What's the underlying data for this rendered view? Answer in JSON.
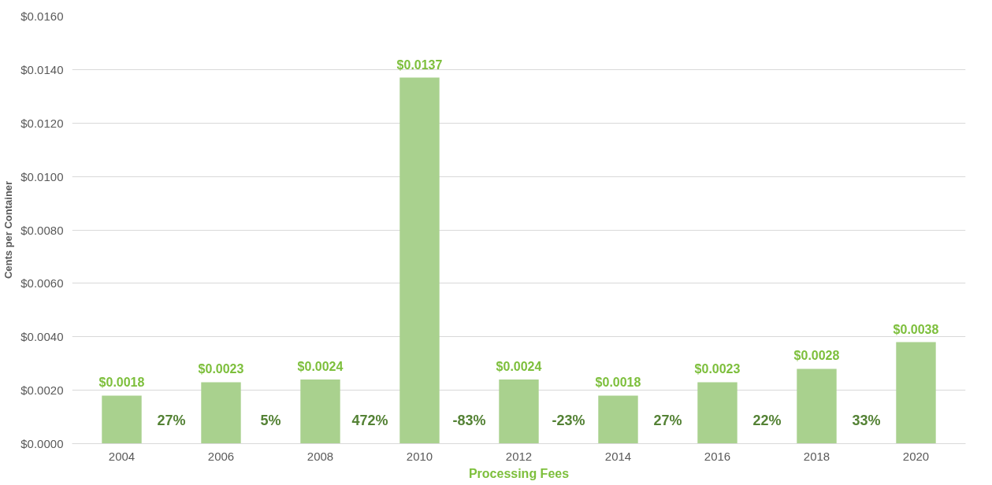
{
  "chart_data": {
    "type": "bar",
    "xlabel": "Processing Fees",
    "ylabel": "Cents per Container",
    "categories": [
      "2004",
      "2006",
      "2008",
      "2010",
      "2012",
      "2014",
      "2016",
      "2018",
      "2020"
    ],
    "values": [
      0.0018,
      0.0023,
      0.0024,
      0.0137,
      0.0024,
      0.0018,
      0.0023,
      0.0028,
      0.0038
    ],
    "color": "#a9d18e",
    "value_labels": [
      "$0.0018",
      "$0.0023",
      "$0.0024",
      "$0.0137",
      "$0.0024",
      "$0.0018",
      "$0.0023",
      "$0.0028",
      "$0.0038"
    ],
    "annotations": [
      "27%",
      "5%",
      "472%",
      "-83%",
      "-23%",
      "27%",
      "22%",
      "33%"
    ],
    "ylim": [
      0,
      0.016
    ],
    "yticks": [
      {
        "value": 0,
        "label": "$0.0000"
      },
      {
        "value": 0.002,
        "label": "$0.0020"
      },
      {
        "value": 0.004,
        "label": "$0.0040"
      },
      {
        "value": 0.006,
        "label": "$0.0060"
      },
      {
        "value": 0.008,
        "label": "$0.0080"
      },
      {
        "value": 0.01,
        "label": "$0.0100"
      },
      {
        "value": 0.012,
        "label": "$0.0120"
      },
      {
        "value": 0.014,
        "label": "$0.0140"
      },
      {
        "value": 0.016,
        "label": "$0.0160"
      }
    ],
    "grid": "y"
  }
}
